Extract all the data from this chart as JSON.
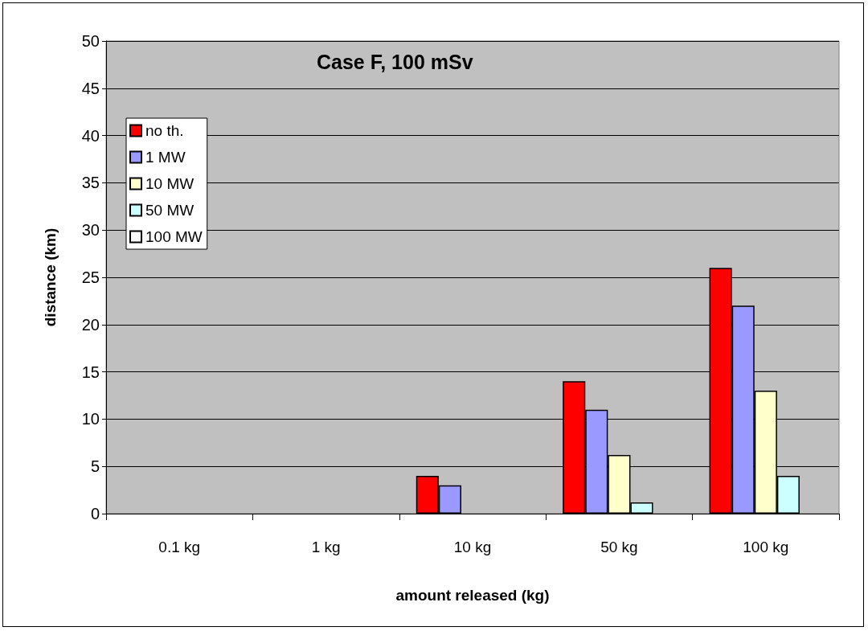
{
  "chart_data": {
    "type": "bar",
    "title": "Case F, 100 mSv",
    "xlabel": "amount released (kg)",
    "ylabel": "distance (km)",
    "categories": [
      "0.1 kg",
      "1 kg",
      "10 kg",
      "50 kg",
      "100 kg"
    ],
    "series": [
      {
        "name": "no th.",
        "color": "#ff0000",
        "values": [
          null,
          null,
          4,
          14,
          26
        ]
      },
      {
        "name": "1 MW",
        "color": "#9999ff",
        "values": [
          null,
          null,
          3,
          11,
          22
        ]
      },
      {
        "name": "10 MW",
        "color": "#ffffcc",
        "values": [
          null,
          null,
          null,
          6.2,
          13
        ]
      },
      {
        "name": "50 MW",
        "color": "#ccffff",
        "values": [
          null,
          null,
          null,
          1.2,
          4
        ]
      },
      {
        "name": "100 MW",
        "color": "#ffffff",
        "values": [
          null,
          null,
          null,
          null,
          null
        ]
      }
    ],
    "ylim": [
      0,
      50
    ],
    "yticks": [
      0,
      5,
      10,
      15,
      20,
      25,
      30,
      35,
      40,
      45,
      50
    ],
    "grid": "y",
    "legend": "top left"
  }
}
